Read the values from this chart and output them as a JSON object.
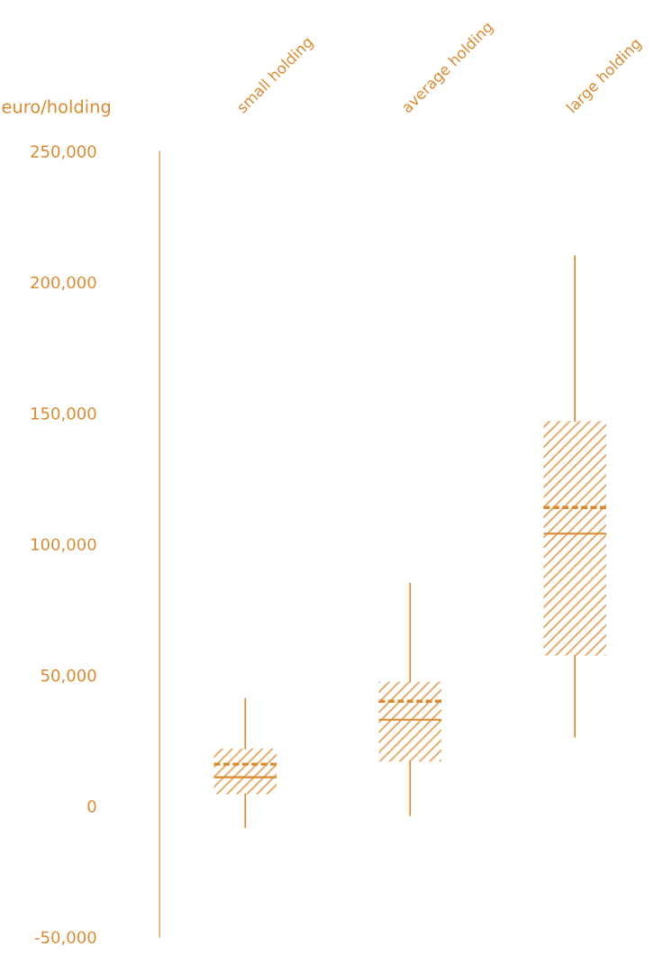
{
  "chart_data": {
    "type": "box",
    "ylabel": "euro/holding",
    "categories": [
      "small holding",
      "average holding",
      "large holding"
    ],
    "boxes": [
      {
        "low": -8000,
        "q1": 4500,
        "median": 11000,
        "q3": 22000,
        "high": 41000,
        "mean": 16000
      },
      {
        "low": -3500,
        "q1": 17000,
        "median": 33000,
        "q3": 47500,
        "high": 85000,
        "mean": 40000
      },
      {
        "low": 26500,
        "q1": 57500,
        "median": 104000,
        "q3": 147000,
        "high": 210000,
        "mean": 114000
      }
    ],
    "color": "#d98a2e",
    "ylim": [
      -50000,
      250000
    ],
    "yticks": [
      {
        "value": -50000,
        "label": "-50,000"
      },
      {
        "value": 0,
        "label": "0"
      },
      {
        "value": 50000,
        "label": "50,000"
      },
      {
        "value": 100000,
        "label": "100,000"
      },
      {
        "value": 150000,
        "label": "150,000"
      },
      {
        "value": 200000,
        "label": "200,000"
      },
      {
        "value": 250000,
        "label": "250,000"
      }
    ],
    "grid": false,
    "legend": false
  }
}
